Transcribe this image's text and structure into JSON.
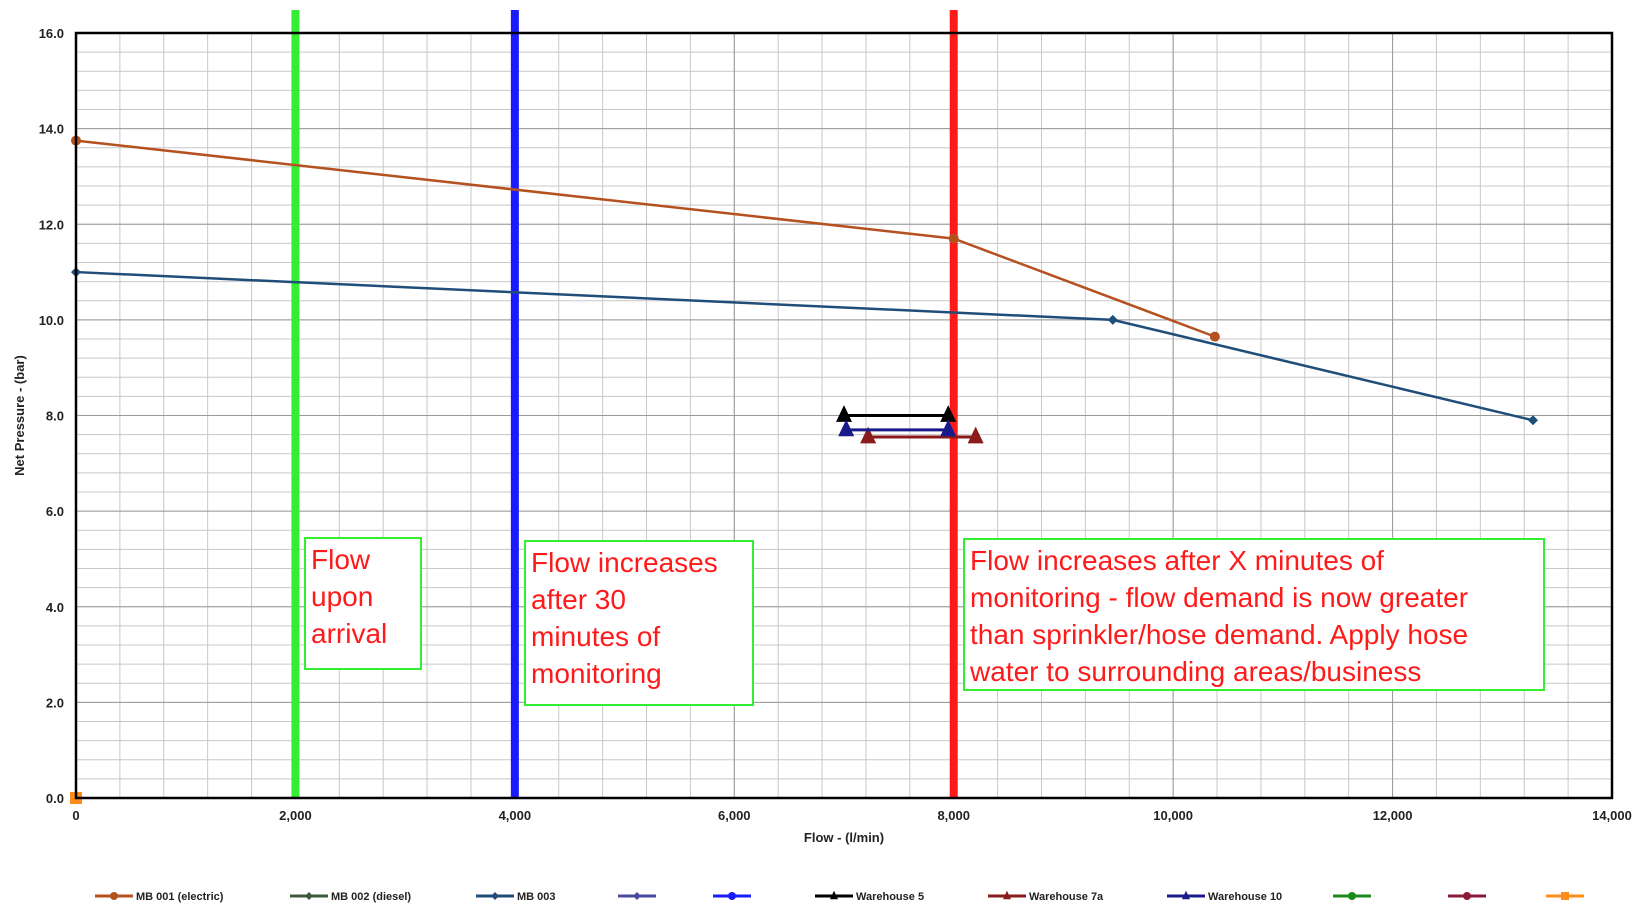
{
  "chart_data": {
    "type": "line",
    "xlabel": "Flow - (l/min)",
    "ylabel": "Net Pressure - (bar)",
    "xlim": [
      0,
      14000
    ],
    "ylim": [
      0,
      16
    ],
    "x_ticks": [
      "0",
      "2,000",
      "4,000",
      "6,000",
      "8,000",
      "10,000",
      "12,000",
      "14,000"
    ],
    "y_ticks": [
      "0.0",
      "2.0",
      "4.0",
      "6.0",
      "8.0",
      "10.0",
      "12.0",
      "14.0",
      "16.0"
    ],
    "grid": true,
    "legend_position": "bottom",
    "series": [
      {
        "name": "MB 001 (electric)",
        "color": "#b5501f",
        "marker": "circle",
        "points": [
          [
            0,
            13.75
          ],
          [
            8000,
            11.7
          ],
          [
            10380,
            9.65
          ]
        ]
      },
      {
        "name": "MB 002 (diesel)",
        "color": "#3d5a3d",
        "marker": "diamond",
        "points": []
      },
      {
        "name": "MB 003",
        "color": "#1f4e79",
        "marker": "diamond",
        "points": [
          [
            0,
            11.0
          ],
          [
            9450,
            10.0
          ],
          [
            13280,
            7.9
          ]
        ]
      },
      {
        "name": "",
        "color": "#4a4aa0",
        "marker": "diamond",
        "points": []
      },
      {
        "name": "",
        "color": "#1a1aff",
        "marker": "circle",
        "points": []
      },
      {
        "name": "Warehouse 5",
        "color": "#000000",
        "marker": "triangle",
        "points": [
          [
            7000,
            8.0
          ],
          [
            7950,
            8.0
          ]
        ]
      },
      {
        "name": "Warehouse 7a",
        "color": "#8b1a1a",
        "marker": "triangle",
        "points": [
          [
            7220,
            7.55
          ],
          [
            8200,
            7.55
          ]
        ]
      },
      {
        "name": "Warehouse 10",
        "color": "#1a1a8b",
        "marker": "triangle",
        "points": [
          [
            7020,
            7.7
          ],
          [
            7950,
            7.7
          ]
        ]
      },
      {
        "name": "",
        "color": "#1a8b1a",
        "marker": "circle",
        "points": []
      },
      {
        "name": "",
        "color": "#8b1a3a",
        "marker": "circle",
        "points": []
      },
      {
        "name": "",
        "color": "#ff8c1a",
        "marker": "square",
        "points": [
          [
            0,
            0.0
          ]
        ]
      }
    ],
    "vertical_lines": [
      {
        "x": 2000,
        "color": "#33ee33"
      },
      {
        "x": 4000,
        "color": "#1a1aff"
      },
      {
        "x": 8000,
        "color": "#ff1a1a"
      }
    ],
    "annotations": [
      {
        "lines": [
          "Flow",
          "upon",
          "arrival"
        ]
      },
      {
        "lines": [
          "Flow increases",
          "after 30",
          "minutes of",
          "monitoring"
        ]
      },
      {
        "lines": [
          "Flow increases after X minutes of",
          "monitoring - flow demand is now greater",
          "than sprinkler/hose demand.  Apply hose",
          "water to surrounding areas/business"
        ]
      }
    ]
  }
}
